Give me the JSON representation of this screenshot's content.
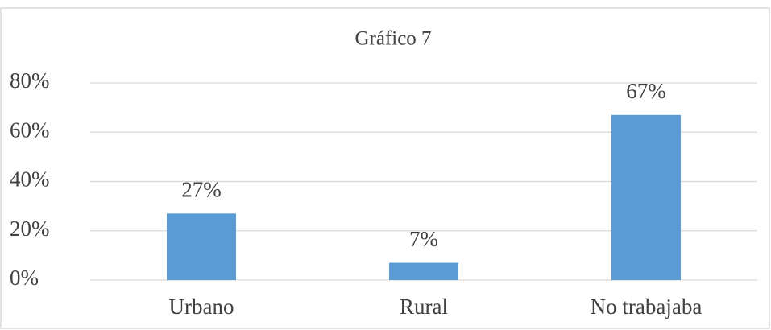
{
  "chart_data": {
    "type": "bar",
    "title": "Gráfico 7",
    "categories": [
      "Urbano",
      "Rural",
      "No trabajaba"
    ],
    "values": [
      27,
      7,
      67
    ],
    "value_labels": [
      "27%",
      "7%",
      "67%"
    ],
    "color": "#5b9bd5",
    "ylim": [
      0,
      80
    ],
    "yticks": [
      {
        "value": 0,
        "label": "0%"
      },
      {
        "value": 20,
        "label": "20%"
      },
      {
        "value": 40,
        "label": "40%"
      },
      {
        "value": 60,
        "label": "60%"
      },
      {
        "value": 80,
        "label": "80%"
      }
    ],
    "grid": true
  }
}
